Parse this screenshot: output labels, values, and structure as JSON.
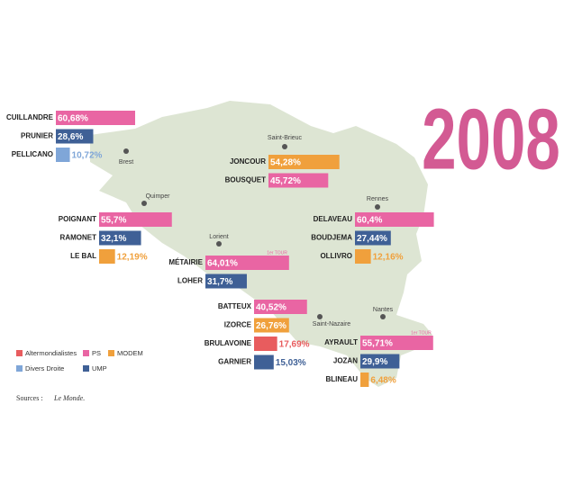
{
  "title": "2008",
  "cities": [
    {
      "name": "Brest"
    },
    {
      "name": "Saint-Brieuc"
    },
    {
      "name": "Quimper"
    },
    {
      "name": "Lorient"
    },
    {
      "name": "Rennes"
    },
    {
      "name": "Saint-Nazaire"
    },
    {
      "name": "Nantes"
    }
  ],
  "parties": [
    {
      "name": "Altermondialistes",
      "color": "#e85c5e"
    },
    {
      "name": "PS",
      "color": "#e965a3"
    },
    {
      "name": "MODEM",
      "color": "#f0a03c"
    },
    {
      "name": "Divers Droite",
      "color": "#7fa6d8"
    },
    {
      "name": "UMP",
      "color": "#3f6096"
    }
  ],
  "groups": [
    {
      "candidates": [
        {
          "name": "CUILLANDRE",
          "party": 1,
          "value": 60.68,
          "label": "60,68%"
        },
        {
          "name": "PRUNIER",
          "party": 4,
          "value": 28.6,
          "label": "28,6%"
        },
        {
          "name": "PELLICANO",
          "party": 3,
          "value": 10.72,
          "label": "10,72%"
        }
      ]
    },
    {
      "candidates": [
        {
          "name": "JONCOUR",
          "party": 2,
          "value": 54.28,
          "label": "54,28%"
        },
        {
          "name": "BOUSQUET",
          "party": 1,
          "value": 45.72,
          "label": "45,72%"
        }
      ]
    },
    {
      "candidates": [
        {
          "name": "POIGNANT",
          "party": 1,
          "value": 55.7,
          "label": "55,7%"
        },
        {
          "name": "RAMONET",
          "party": 4,
          "value": 32.1,
          "label": "32,1%"
        },
        {
          "name": "LE BAL",
          "party": 2,
          "value": 12.19,
          "label": "12,19%"
        }
      ]
    },
    {
      "candidates": [
        {
          "name": "DELAVEAU",
          "party": 1,
          "value": 60.4,
          "label": "60,4%"
        },
        {
          "name": "BOUDJEMA",
          "party": 4,
          "value": 27.44,
          "label": "27,44%"
        },
        {
          "name": "OLLIVRO",
          "party": 2,
          "value": 12.16,
          "label": "12,16%"
        }
      ]
    },
    {
      "candidates": [
        {
          "name": "MÉTAIRIE",
          "party": 1,
          "value": 64.01,
          "label": "64,01%",
          "note": "1er TOUR"
        },
        {
          "name": "LOHER",
          "party": 4,
          "value": 31.7,
          "label": "31,7%"
        }
      ]
    },
    {
      "candidates": [
        {
          "name": "BATTEUX",
          "party": 1,
          "value": 40.52,
          "label": "40,52%"
        },
        {
          "name": "IZORCE",
          "party": 2,
          "value": 26.76,
          "label": "26,76%"
        },
        {
          "name": "BRULAVOINE",
          "party": 0,
          "value": 17.69,
          "label": "17,69%"
        },
        {
          "name": "GARNIER",
          "party": 4,
          "value": 15.03,
          "label": "15,03%"
        }
      ]
    },
    {
      "candidates": [
        {
          "name": "AYRAULT",
          "party": 1,
          "value": 55.71,
          "label": "55,71%",
          "note": "1er TOUR"
        },
        {
          "name": "JOZAN",
          "party": 4,
          "value": 29.9,
          "label": "29,9%"
        },
        {
          "name": "BLINEAU",
          "party": 2,
          "value": 6.48,
          "label": "6,48%"
        }
      ]
    }
  ],
  "source": {
    "prefix": "Sources :",
    "name": "Le Monde."
  }
}
